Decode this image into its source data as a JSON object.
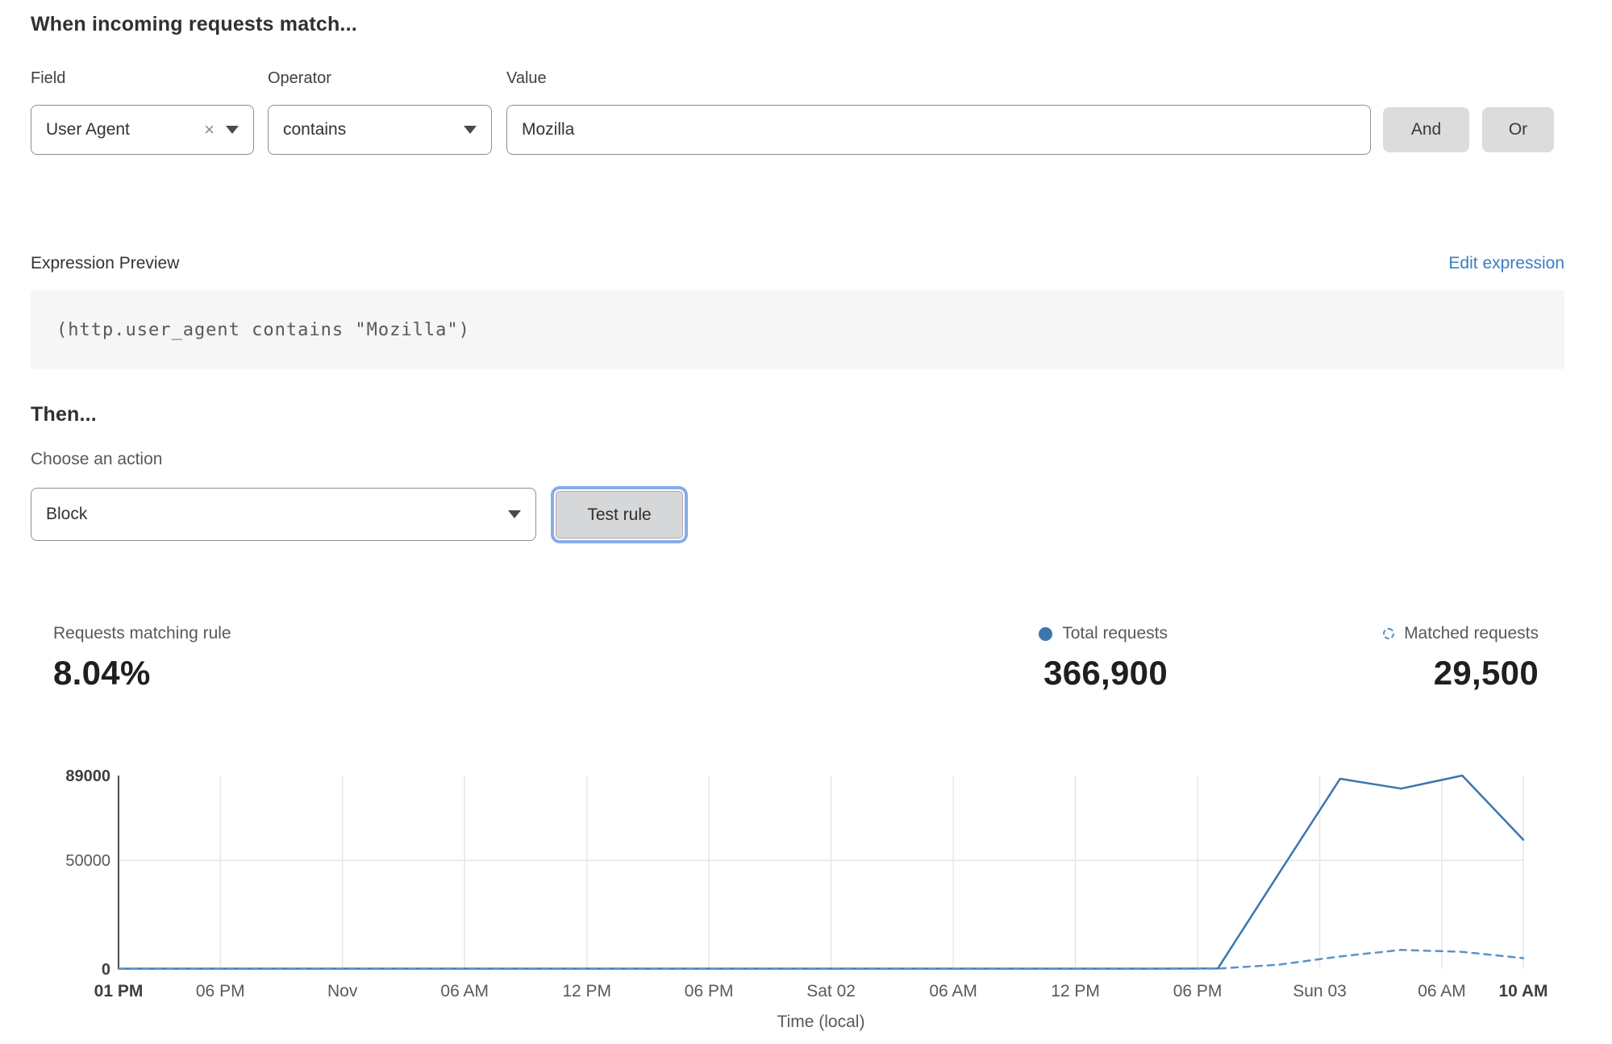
{
  "rule_builder": {
    "heading": "When incoming requests match...",
    "field": {
      "label": "Field",
      "value": "User Agent"
    },
    "operator": {
      "label": "Operator",
      "value": "contains"
    },
    "value": {
      "label": "Value",
      "value": "Mozilla"
    },
    "and_label": "And",
    "or_label": "Or"
  },
  "expression": {
    "label": "Expression Preview",
    "edit_link": "Edit expression",
    "code": "(http.user_agent contains \"Mozilla\")"
  },
  "action": {
    "heading": "Then...",
    "label": "Choose an action",
    "value": "Block",
    "test_button": "Test rule"
  },
  "stats": {
    "matching": {
      "label": "Requests matching rule",
      "value": "8.04%"
    },
    "total": {
      "label": "Total requests",
      "value": "366,900",
      "icon": "solid-dot"
    },
    "matched": {
      "label": "Matched requests",
      "value": "29,500",
      "icon": "dashed-circle"
    }
  },
  "colors": {
    "line_blue": "#3b76ad",
    "dashed_blue": "#5b93c7",
    "link_blue": "#3b7cc0",
    "focus_ring": "#87ace9",
    "grid": "#e6e6e6",
    "axis": "#4d4d4d"
  },
  "chart_data": {
    "type": "line",
    "xlabel": "Time (local)",
    "ylim": [
      0,
      89000
    ],
    "x_span_hours": 69,
    "grid": true,
    "legend_position": "top-right",
    "yticks": [
      {
        "value": 0,
        "label": "0",
        "bold": true
      },
      {
        "value": 50000,
        "label": "50000",
        "bold": false
      },
      {
        "value": 89000,
        "label": "89000",
        "bold": true
      }
    ],
    "xticks": [
      {
        "hour": 0,
        "label": "01 PM",
        "bold": true
      },
      {
        "hour": 5,
        "label": "06 PM",
        "bold": false
      },
      {
        "hour": 11,
        "label": "Nov",
        "bold": false
      },
      {
        "hour": 17,
        "label": "06 AM",
        "bold": false
      },
      {
        "hour": 23,
        "label": "12 PM",
        "bold": false
      },
      {
        "hour": 29,
        "label": "06 PM",
        "bold": false
      },
      {
        "hour": 35,
        "label": "Sat 02",
        "bold": false
      },
      {
        "hour": 41,
        "label": "06 AM",
        "bold": false
      },
      {
        "hour": 47,
        "label": "12 PM",
        "bold": false
      },
      {
        "hour": 53,
        "label": "06 PM",
        "bold": false
      },
      {
        "hour": 59,
        "label": "Sun 03",
        "bold": false
      },
      {
        "hour": 65,
        "label": "06 AM",
        "bold": false
      },
      {
        "hour": 69,
        "label": "10 AM",
        "bold": true
      }
    ],
    "series": [
      {
        "name": "Total requests",
        "style": "solid",
        "color": "#3b76ad",
        "points": [
          [
            0,
            200
          ],
          [
            3,
            200
          ],
          [
            6,
            200
          ],
          [
            9,
            200
          ],
          [
            12,
            200
          ],
          [
            15,
            200
          ],
          [
            18,
            200
          ],
          [
            21,
            200
          ],
          [
            24,
            200
          ],
          [
            27,
            200
          ],
          [
            30,
            200
          ],
          [
            33,
            200
          ],
          [
            36,
            200
          ],
          [
            39,
            200
          ],
          [
            42,
            200
          ],
          [
            45,
            200
          ],
          [
            48,
            200
          ],
          [
            51,
            200
          ],
          [
            54,
            300
          ],
          [
            57,
            44000
          ],
          [
            60,
            87500
          ],
          [
            63,
            83000
          ],
          [
            66,
            89000
          ],
          [
            69,
            59500
          ]
        ]
      },
      {
        "name": "Matched requests",
        "style": "dashed",
        "color": "#5b93c7",
        "points": [
          [
            0,
            100
          ],
          [
            3,
            100
          ],
          [
            6,
            100
          ],
          [
            9,
            100
          ],
          [
            12,
            100
          ],
          [
            15,
            100
          ],
          [
            18,
            100
          ],
          [
            21,
            100
          ],
          [
            24,
            100
          ],
          [
            27,
            100
          ],
          [
            30,
            100
          ],
          [
            33,
            100
          ],
          [
            36,
            100
          ],
          [
            39,
            100
          ],
          [
            42,
            100
          ],
          [
            45,
            100
          ],
          [
            48,
            100
          ],
          [
            51,
            100
          ],
          [
            54,
            200
          ],
          [
            57,
            2000
          ],
          [
            60,
            5800
          ],
          [
            63,
            8800
          ],
          [
            66,
            7900
          ],
          [
            69,
            5000
          ]
        ]
      }
    ]
  }
}
